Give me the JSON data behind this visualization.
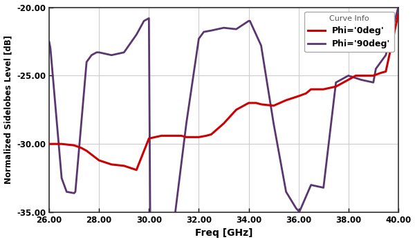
{
  "phi0_x": [
    26.0,
    26.5,
    27.0,
    27.3,
    27.5,
    28.0,
    28.5,
    29.0,
    29.5,
    30.0,
    30.5,
    31.0,
    31.3,
    31.5,
    32.0,
    32.3,
    32.5,
    33.0,
    33.5,
    34.0,
    34.3,
    34.5,
    35.0,
    35.5,
    36.0,
    36.3,
    36.5,
    37.0,
    37.5,
    38.0,
    38.3,
    38.5,
    39.0,
    39.3,
    39.5,
    40.0
  ],
  "phi0_y": [
    -30.0,
    -30.0,
    -30.1,
    -30.3,
    -30.5,
    -31.2,
    -31.5,
    -31.6,
    -31.9,
    -29.6,
    -29.4,
    -29.4,
    -29.4,
    -29.5,
    -29.5,
    -29.4,
    -29.3,
    -28.5,
    -27.5,
    -27.0,
    -27.0,
    -27.1,
    -27.2,
    -26.8,
    -26.5,
    -26.3,
    -26.0,
    -26.0,
    -25.8,
    -25.3,
    -25.0,
    -25.0,
    -25.0,
    -24.8,
    -24.7,
    -20.5
  ],
  "phi90_x": [
    26.0,
    26.05,
    26.5,
    26.7,
    27.0,
    27.05,
    27.5,
    27.7,
    27.9,
    28.0,
    28.5,
    29.0,
    29.5,
    29.8,
    30.0,
    30.05,
    30.5,
    31.0,
    31.05,
    31.5,
    32.0,
    32.2,
    32.5,
    33.0,
    33.5,
    34.0,
    34.05,
    34.5,
    35.0,
    35.5,
    35.9,
    36.0,
    36.05,
    36.5,
    37.0,
    37.5,
    38.0,
    38.5,
    39.0,
    39.1,
    39.5,
    40.0
  ],
  "phi90_y": [
    -22.5,
    -23.0,
    -32.5,
    -33.5,
    -33.6,
    -33.5,
    -24.0,
    -23.5,
    -23.3,
    -23.3,
    -23.5,
    -23.3,
    -22.0,
    -21.0,
    -20.8,
    -35.2,
    -35.3,
    -35.2,
    -35.1,
    -28.5,
    -22.3,
    -21.8,
    -21.7,
    -21.5,
    -21.6,
    -21.0,
    -21.0,
    -22.8,
    -28.5,
    -33.5,
    -34.7,
    -34.9,
    -34.9,
    -33.0,
    -33.2,
    -25.5,
    -25.0,
    -25.3,
    -25.5,
    -24.5,
    -23.5,
    -20.0
  ],
  "xlim": [
    26.0,
    40.0
  ],
  "ylim": [
    -35.0,
    -20.0
  ],
  "xticks": [
    26.0,
    28.0,
    30.0,
    32.0,
    34.0,
    36.0,
    38.0,
    40.0
  ],
  "yticks": [
    -35.0,
    -30.0,
    -25.0,
    -20.0
  ],
  "xlabel": "Freq [GHz]",
  "ylabel": "Normalized Sidelobes Level [dB]",
  "legend_title": "Curve Info",
  "legend_labels": [
    "Phi='0deg'",
    "Phi='90deg'"
  ],
  "phi0_color": "#cc0000",
  "phi90_color": "#5b3570",
  "bg_color": "#ffffff",
  "grid_color": "#cccccc",
  "phi0_lw": 2.2,
  "phi90_lw": 2.0,
  "figsize": [
    6.0,
    3.5
  ],
  "dpi": 100
}
